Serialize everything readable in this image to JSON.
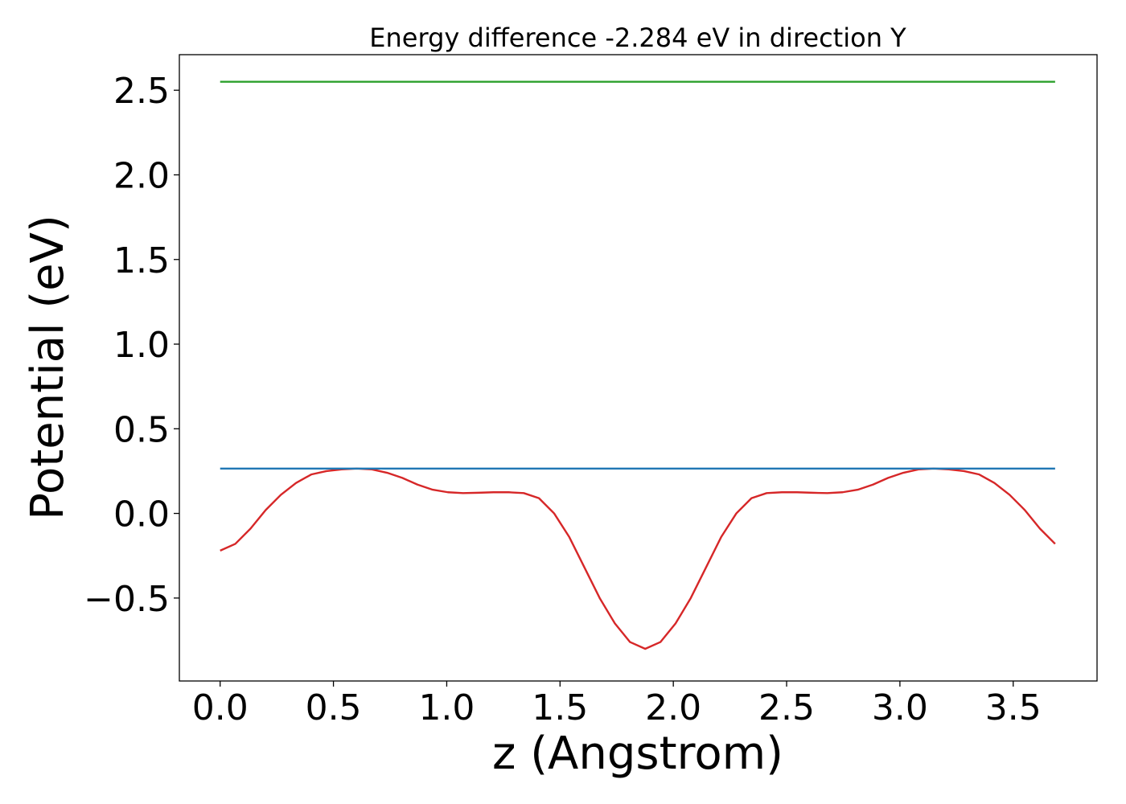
{
  "chart_data": {
    "type": "line",
    "title": "Energy difference -2.284 eV in direction Y",
    "xlabel": "z (Angstrom)",
    "ylabel": "Potential (eV)",
    "xlim": [
      -0.18,
      3.87
    ],
    "ylim": [
      -0.99,
      2.71
    ],
    "xticks": [
      0.0,
      0.5,
      1.0,
      1.5,
      2.0,
      2.5,
      3.0,
      3.5
    ],
    "xtick_labels": [
      "0.0",
      "0.5",
      "1.0",
      "1.5",
      "2.0",
      "2.5",
      "3.0",
      "3.5"
    ],
    "yticks": [
      -0.5,
      0.0,
      0.5,
      1.0,
      1.5,
      2.0,
      2.5
    ],
    "ytick_labels": [
      "−0.5",
      "0.0",
      "0.5",
      "1.0",
      "1.5",
      "2.0",
      "2.5"
    ],
    "grid": false,
    "series": [
      {
        "color": "#d62728",
        "kind": "line",
        "x": [
          0.0,
          0.067,
          0.134,
          0.201,
          0.268,
          0.335,
          0.402,
          0.469,
          0.536,
          0.603,
          0.67,
          0.737,
          0.804,
          0.871,
          0.938,
          1.005,
          1.072,
          1.139,
          1.206,
          1.273,
          1.34,
          1.407,
          1.474,
          1.541,
          1.608,
          1.675,
          1.742,
          1.809,
          1.876,
          1.943,
          2.01,
          2.077,
          2.144,
          2.211,
          2.278,
          2.345,
          2.412,
          2.479,
          2.546,
          2.613,
          2.68,
          2.747,
          2.814,
          2.881,
          2.948,
          3.015,
          3.082,
          3.149,
          3.216,
          3.283,
          3.35,
          3.417,
          3.484,
          3.551,
          3.618,
          3.685
        ],
        "y": [
          -0.22,
          -0.18,
          -0.09,
          0.02,
          0.11,
          0.18,
          0.23,
          0.25,
          0.26,
          0.265,
          0.26,
          0.24,
          0.21,
          0.17,
          0.14,
          0.125,
          0.12,
          0.122,
          0.125,
          0.125,
          0.12,
          0.09,
          0.0,
          -0.14,
          -0.32,
          -0.5,
          -0.65,
          -0.76,
          -0.8,
          -0.76,
          -0.65,
          -0.5,
          -0.32,
          -0.14,
          0.0,
          0.09,
          0.12,
          0.125,
          0.125,
          0.122,
          0.12,
          0.125,
          0.14,
          0.17,
          0.21,
          0.24,
          0.26,
          0.265,
          0.26,
          0.25,
          0.23,
          0.18,
          0.11,
          0.02,
          -0.09,
          -0.18
        ]
      },
      {
        "color": "#1f77b4",
        "kind": "hline",
        "x": [
          0.0,
          3.685
        ],
        "y": [
          0.265,
          0.265
        ]
      },
      {
        "color": "#2ca02c",
        "kind": "hline",
        "x": [
          0.0,
          3.685
        ],
        "y": [
          2.55,
          2.55
        ]
      }
    ]
  }
}
